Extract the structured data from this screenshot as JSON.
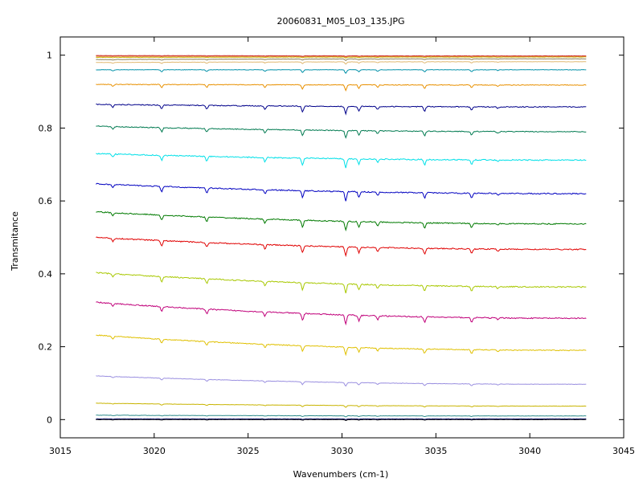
{
  "chart_data": {
    "type": "line",
    "title": "20060831_M05_L03_135.JPG",
    "xlabel": "Wavenumbers (cm-1)",
    "ylabel": "Transmitance",
    "xlim": [
      3015,
      3045
    ],
    "ylim": [
      -0.05,
      1.05
    ],
    "x_ticks": [
      3015,
      3020,
      3025,
      3030,
      3035,
      3040,
      3045
    ],
    "y_ticks": [
      0,
      0.2,
      0.4,
      0.6,
      0.8,
      1
    ],
    "x_tick_labels": [
      "3015",
      "3020",
      "3025",
      "3030",
      "3035",
      "3040",
      "3045"
    ],
    "y_tick_labels": [
      "0",
      "0.2",
      "0.4",
      "0.6",
      "0.8",
      "1"
    ],
    "grid": false,
    "x_range": [
      3016.9,
      3043.0
    ],
    "absorption_lines": [
      {
        "x": 3017.8,
        "depth": 0.35
      },
      {
        "x": 3020.4,
        "depth": 0.55
      },
      {
        "x": 3022.8,
        "depth": 0.5
      },
      {
        "x": 3025.9,
        "depth": 0.45
      },
      {
        "x": 3027.9,
        "depth": 0.75
      },
      {
        "x": 3030.2,
        "depth": 1.0
      },
      {
        "x": 3030.9,
        "depth": 0.6
      },
      {
        "x": 3031.9,
        "depth": 0.4
      },
      {
        "x": 3034.4,
        "depth": 0.6
      },
      {
        "x": 3036.9,
        "depth": 0.5
      },
      {
        "x": 3038.3,
        "depth": 0.2
      }
    ],
    "series": [
      {
        "color": "#000000",
        "start": 0.0,
        "end": 0.0,
        "line_depth": 0.002
      },
      {
        "color": "#1a1a6e",
        "start": 0.002,
        "end": 0.002,
        "line_depth": 0.002
      },
      {
        "color": "#2b8a8a",
        "start": 0.012,
        "end": 0.01,
        "line_depth": 0.003
      },
      {
        "color": "#c8b400",
        "start": 0.045,
        "end": 0.037,
        "line_depth": 0.005
      },
      {
        "color": "#9a8fe0",
        "start": 0.12,
        "end": 0.097,
        "line_depth": 0.01
      },
      {
        "color": "#e0c000",
        "start": 0.232,
        "end": 0.19,
        "line_depth": 0.02
      },
      {
        "color": "#c0007a",
        "start": 0.322,
        "end": 0.278,
        "line_depth": 0.025
      },
      {
        "color": "#a8c800",
        "start": 0.403,
        "end": 0.364,
        "line_depth": 0.025
      },
      {
        "color": "#e00000",
        "start": 0.5,
        "end": 0.467,
        "line_depth": 0.025
      },
      {
        "color": "#007a00",
        "start": 0.57,
        "end": 0.537,
        "line_depth": 0.025
      },
      {
        "color": "#0000c0",
        "start": 0.647,
        "end": 0.62,
        "line_depth": 0.025
      },
      {
        "color": "#00e0e8",
        "start": 0.73,
        "end": 0.712,
        "line_depth": 0.025
      },
      {
        "color": "#007a50",
        "start": 0.805,
        "end": 0.79,
        "line_depth": 0.02
      },
      {
        "color": "#00008a",
        "start": 0.865,
        "end": 0.858,
        "line_depth": 0.02
      },
      {
        "color": "#e89000",
        "start": 0.92,
        "end": 0.918,
        "line_depth": 0.015
      },
      {
        "color": "#0090a8",
        "start": 0.96,
        "end": 0.96,
        "line_depth": 0.01
      },
      {
        "color": "#e0b870",
        "start": 0.98,
        "end": 0.982,
        "line_depth": 0.006
      },
      {
        "color": "#8a7f50",
        "start": 0.988,
        "end": 0.99,
        "line_depth": 0.004
      },
      {
        "color": "#c8b400",
        "start": 0.994,
        "end": 0.995,
        "line_depth": 0.003
      },
      {
        "color": "#e08040",
        "start": 0.997,
        "end": 0.997,
        "line_depth": 0.002
      },
      {
        "color": "#d03030",
        "start": 0.999,
        "end": 0.998,
        "line_depth": 0.002
      }
    ]
  }
}
